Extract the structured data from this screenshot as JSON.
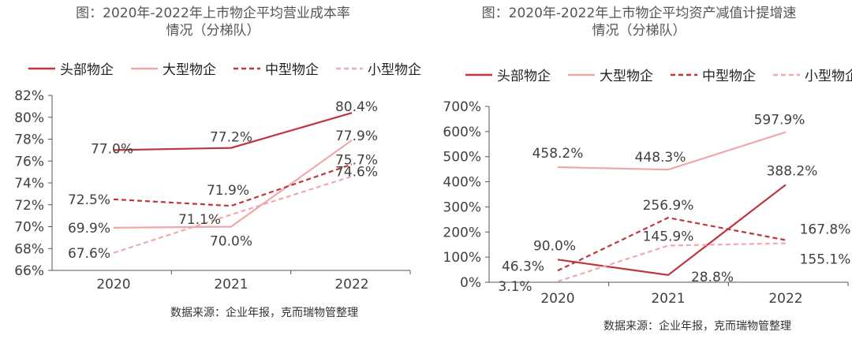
{
  "colors": {
    "head": "#c0363f",
    "large": "#f0a7a9",
    "mid": "#c0363f",
    "small": "#f2a9ab",
    "axis": "#555555",
    "text": "#404040"
  },
  "chart_data": [
    {
      "type": "line",
      "title_line1": "图：2020年-2022年上市物企平均营业成本率",
      "title_line2": "情况（分梯队）",
      "categories": [
        "2020",
        "2021",
        "2022"
      ],
      "ylim": [
        66,
        82
      ],
      "yticks": [
        "66%",
        "68%",
        "70%",
        "72%",
        "74%",
        "76%",
        "78%",
        "80%",
        "82%"
      ],
      "series": [
        {
          "name": "头部物企",
          "values": [
            77.0,
            77.2,
            80.4
          ],
          "labels": [
            "77.0%",
            "77.2%",
            "80.4%"
          ],
          "style": "head"
        },
        {
          "name": "大型物企",
          "values": [
            69.9,
            70.0,
            77.9
          ],
          "labels": [
            "69.9%",
            "70.0%",
            "77.9%"
          ],
          "style": "large"
        },
        {
          "name": "中型物企",
          "values": [
            72.5,
            71.9,
            75.7
          ],
          "labels": [
            "72.5%",
            "71.9%",
            "75.7%"
          ],
          "style": "mid"
        },
        {
          "name": "小型物企",
          "values": [
            67.6,
            71.1,
            74.6
          ],
          "labels": [
            "67.6%",
            "71.1%",
            "74.6%"
          ],
          "style": "small"
        }
      ],
      "source": "数据来源：企业年报，克而瑞物管整理"
    },
    {
      "type": "line",
      "title_line1": "图：2020年-2022年上市物企平均资产减值计提增速",
      "title_line2": "情况（分梯队）",
      "categories": [
        "2020",
        "2021",
        "2022"
      ],
      "ylim": [
        0,
        700
      ],
      "yticks": [
        "0%",
        "100%",
        "200%",
        "300%",
        "400%",
        "500%",
        "600%",
        "700%"
      ],
      "series": [
        {
          "name": "头部物企",
          "values": [
            90.0,
            28.8,
            388.2
          ],
          "labels": [
            "90.0%",
            "28.8%",
            "388.2%"
          ],
          "style": "head"
        },
        {
          "name": "大型物企",
          "values": [
            458.2,
            448.3,
            597.9
          ],
          "labels": [
            "458.2%",
            "448.3%",
            "597.9%"
          ],
          "style": "large"
        },
        {
          "name": "中型物企",
          "values": [
            46.3,
            256.9,
            167.8
          ],
          "labels": [
            "46.3%",
            "256.9%",
            "167.8%"
          ],
          "style": "mid"
        },
        {
          "name": "小型物企",
          "values": [
            3.1,
            145.9,
            155.1
          ],
          "labels": [
            "3.1%",
            "145.9%",
            "155.1%"
          ],
          "style": "small"
        }
      ],
      "source": "数据来源：企业年报，克而瑞物管整理"
    }
  ]
}
